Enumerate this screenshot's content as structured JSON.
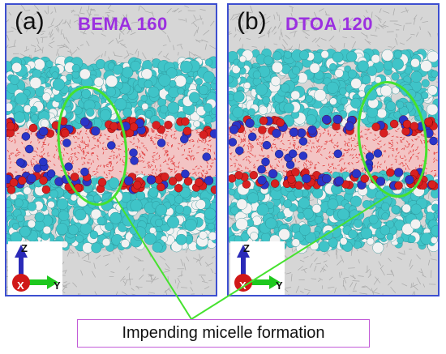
{
  "panels": [
    {
      "label": "(a)",
      "title": "BEMA 160"
    },
    {
      "label": "(b)",
      "title": "DTOA 120"
    }
  ],
  "axes": {
    "z": "Z",
    "x": "X",
    "y": "Y"
  },
  "caption": "Impending micelle formation",
  "colors": {
    "frame": "#3d4fd0",
    "title": "#9b30e0",
    "ellipse": "#46e22f",
    "caption_border": "#c25bd8",
    "carbon": "#3fc4c8",
    "oxygen": "#d82020",
    "nitrogen": "#2a35c8",
    "hydrogen": "#f2f2f2",
    "water": "#f3c4c4",
    "solvent": "#d6d6d6"
  },
  "icons": [
    "z-axis-arrow-icon",
    "y-axis-arrow-icon",
    "x-axis-sphere-icon"
  ]
}
